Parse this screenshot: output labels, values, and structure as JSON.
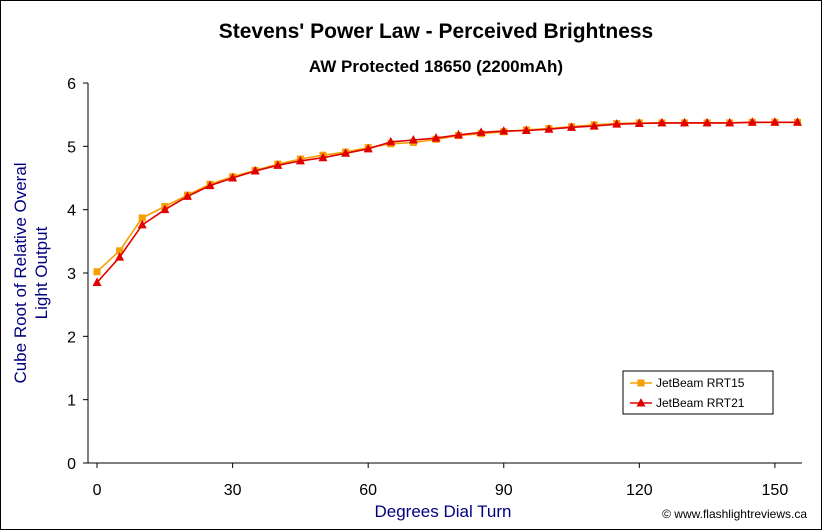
{
  "chart_data": {
    "type": "line",
    "title": "Stevens' Power Law - Perceived Brightness",
    "subtitle": "AW Protected 18650 (2200mAh)",
    "xlabel": "Degrees Dial Turn",
    "ylabel_line1": "Cube Root of Relative Overal",
    "ylabel_line2": "Light Output",
    "xlim": [
      -2,
      156
    ],
    "ylim": [
      0,
      6
    ],
    "xticks": [
      0,
      30,
      60,
      90,
      120,
      150
    ],
    "yticks": [
      0,
      1,
      2,
      3,
      4,
      5,
      6
    ],
    "grid": false,
    "legend_position": "bottom-right",
    "x": [
      0,
      5,
      10,
      15,
      20,
      25,
      30,
      35,
      40,
      45,
      50,
      55,
      60,
      65,
      70,
      75,
      80,
      85,
      90,
      95,
      100,
      105,
      110,
      115,
      120,
      125,
      130,
      135,
      140,
      145,
      150,
      155
    ],
    "series": [
      {
        "name": "JetBeam RRT15",
        "color": "#f5a000",
        "marker": "square",
        "values": [
          3.02,
          3.35,
          3.87,
          4.05,
          4.23,
          4.4,
          4.52,
          4.62,
          4.72,
          4.8,
          4.86,
          4.91,
          4.98,
          5.04,
          5.06,
          5.11,
          5.17,
          5.2,
          5.23,
          5.26,
          5.28,
          5.31,
          5.34,
          5.36,
          5.37,
          5.37,
          5.37,
          5.37,
          5.37,
          5.38,
          5.38,
          5.38
        ]
      },
      {
        "name": "JetBeam RRT21",
        "color": "#e00000",
        "marker": "triangle",
        "values": [
          2.85,
          3.25,
          3.76,
          4.0,
          4.21,
          4.38,
          4.5,
          4.61,
          4.7,
          4.77,
          4.82,
          4.89,
          4.96,
          5.07,
          5.1,
          5.13,
          5.18,
          5.22,
          5.24,
          5.25,
          5.27,
          5.3,
          5.32,
          5.35,
          5.36,
          5.37,
          5.37,
          5.37,
          5.37,
          5.38,
          5.38,
          5.38
        ]
      }
    ],
    "colors": {
      "axis_title": "#00007f",
      "axis_line": "#000000"
    }
  },
  "footer": {
    "copyright": "© www.flashlightreviews.ca"
  }
}
